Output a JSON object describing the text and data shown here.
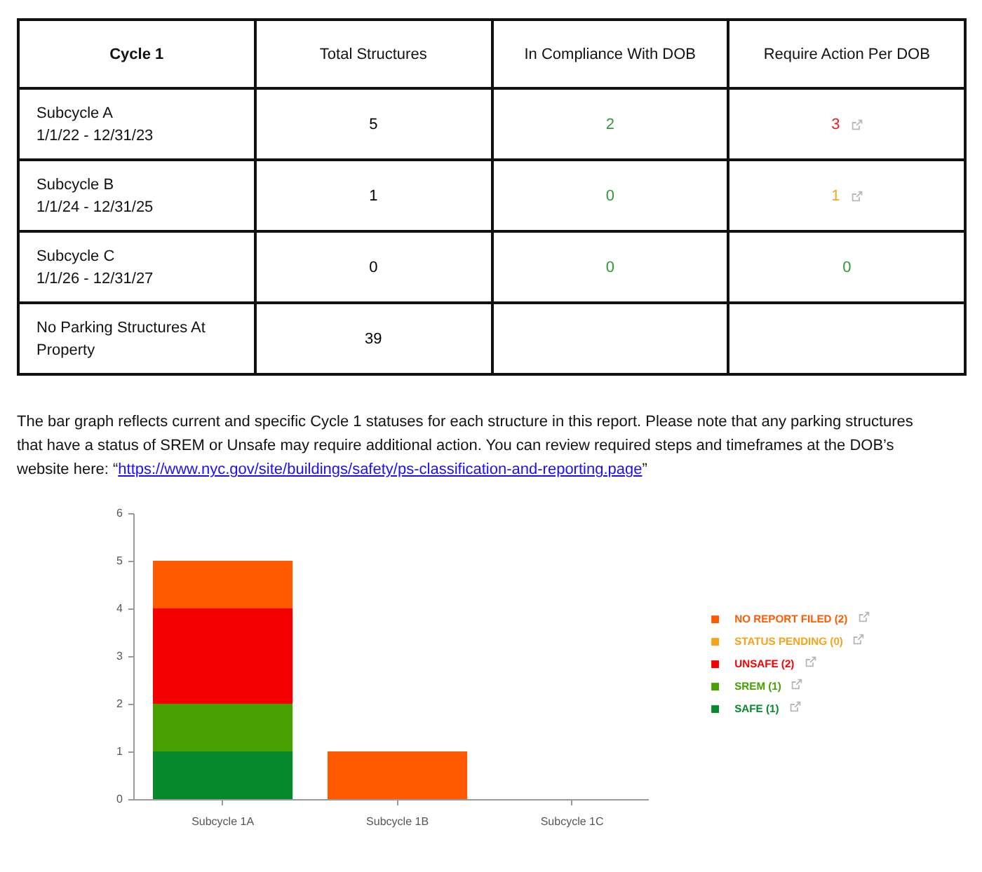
{
  "chart_data": [
    {
      "type": "other",
      "title": "Cycle 1",
      "categories": [
        "Total Structures",
        "In Compliance With DOB",
        "Require Action Per DOB"
      ],
      "y_categories": [
        "Subcycle A\n1/1/22 - 12/31/23",
        "Subcycle B\n1/1/24 - 12/31/25",
        "Subcycle C\n1/1/26 - 12/31/27",
        "No Parking Structures At Property"
      ],
      "cell_labels": [
        [
          "5",
          "2",
          "3"
        ],
        [
          "1",
          "0",
          "1"
        ],
        [
          "0",
          "0",
          "0"
        ],
        [
          "39",
          null,
          null
        ]
      ],
      "colors": [
        [
          "#000000",
          "#2e9a3a",
          "#f01c1c"
        ],
        [
          "#000000",
          "#2e9a3a",
          "#f5a623"
        ],
        [
          "#000000",
          "#2e9a3a",
          "#2e9a3a"
        ],
        [
          "#000000",
          null,
          null
        ]
      ]
    },
    {
      "type": "bar",
      "subtitle": "The bar graph reflects current and specific Cycle 1 statuses for each structure in this report. Please note that any parking structures that have a status of SREM or Unsafe may require additional action. You can review required steps and timeframes at the DOB’s website here: “https://www.nyc.gov/site/buildings/safety/ps-classification-and-reporting.page”",
      "categories": [
        "Subcycle 1A",
        "Subcycle 1B",
        "Subcycle 1C"
      ],
      "series": [
        {
          "name": "SAFE (1)",
          "color": "#06892d",
          "values": [
            1,
            0,
            0
          ]
        },
        {
          "name": "SREM (1)",
          "color": "#45a000",
          "values": [
            1,
            0,
            0
          ]
        },
        {
          "name": "UNSAFE (2)",
          "color": "#f50000",
          "values": [
            2,
            0,
            0
          ]
        },
        {
          "name": "STATUS PENDING (0)",
          "color": "#f7a21b",
          "values": [
            0,
            0,
            0
          ]
        },
        {
          "name": "NO REPORT FILED (2)",
          "color": "#ff5a00",
          "values": [
            1,
            1,
            0
          ]
        }
      ],
      "stacked": true,
      "ylim": [
        0,
        6
      ],
      "yticks": [
        0,
        1,
        2,
        3,
        4,
        5,
        6
      ],
      "legend": "right"
    }
  ]
}
